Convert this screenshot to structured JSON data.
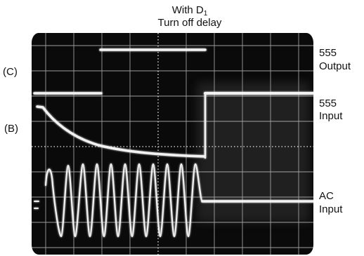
{
  "title": {
    "line1_text": "With D",
    "line1_subscript": "1",
    "line2": "Turn off delay"
  },
  "left_labels": {
    "c": "(C)",
    "b": "(B)"
  },
  "right_labels": {
    "output": {
      "line1": "555",
      "line2": "Output"
    },
    "input": {
      "line1": "555",
      "line2": "Input"
    },
    "ac": {
      "line1": "AC",
      "line2": "Input"
    }
  },
  "colors": {
    "screen": "#0a0a0a",
    "trace": "#f2f2f2",
    "grid": "#cfcfcf"
  }
}
